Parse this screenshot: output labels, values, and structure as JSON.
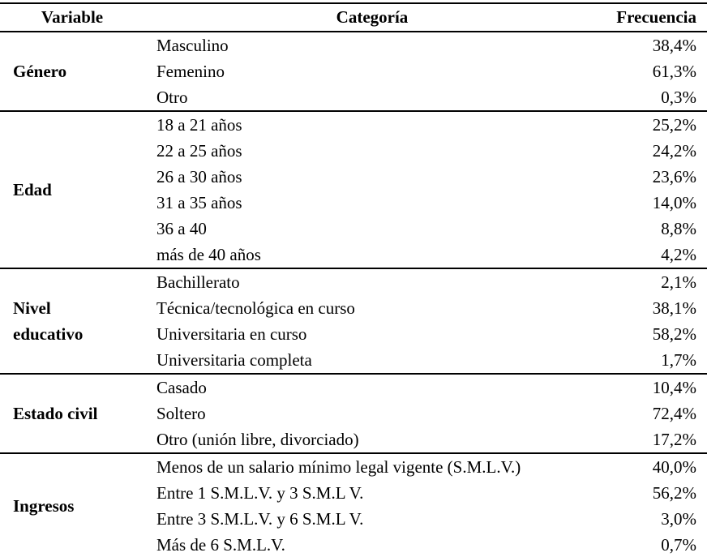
{
  "table": {
    "headers": {
      "variable": "Variable",
      "categoria": "Categoría",
      "frecuencia": "Frecuencia"
    },
    "groups": [
      {
        "variable": "Género",
        "rows": [
          {
            "categoria": "Masculino",
            "frecuencia": "38,4%"
          },
          {
            "categoria": "Femenino",
            "frecuencia": "61,3%"
          },
          {
            "categoria": "Otro",
            "frecuencia": "0,3%"
          }
        ]
      },
      {
        "variable": "Edad",
        "rows": [
          {
            "categoria": "18 a 21 años",
            "frecuencia": "25,2%"
          },
          {
            "categoria": "22 a 25 años",
            "frecuencia": "24,2%"
          },
          {
            "categoria": "26 a 30 años",
            "frecuencia": "23,6%"
          },
          {
            "categoria": "31 a 35 años",
            "frecuencia": "14,0%"
          },
          {
            "categoria": "36 a 40",
            "frecuencia": "8,8%"
          },
          {
            "categoria": "más de 40 años",
            "frecuencia": "4,2%"
          }
        ]
      },
      {
        "variable": "Nivel educativo",
        "rows": [
          {
            "categoria": "Bachillerato",
            "frecuencia": "2,1%"
          },
          {
            "categoria": "Técnica/tecnológica en curso",
            "frecuencia": "38,1%"
          },
          {
            "categoria": "Universitaria en curso",
            "frecuencia": "58,2%"
          },
          {
            "categoria": "Universitaria completa",
            "frecuencia": "1,7%"
          }
        ]
      },
      {
        "variable": "Estado civil",
        "rows": [
          {
            "categoria": "Casado",
            "frecuencia": "10,4%"
          },
          {
            "categoria": "Soltero",
            "frecuencia": "72,4%"
          },
          {
            "categoria": "Otro (unión libre, divorciado)",
            "frecuencia": "17,2%"
          }
        ]
      },
      {
        "variable": "Ingresos",
        "rows": [
          {
            "categoria": "Menos de un salario mínimo legal vigente (S.M.L.V.)",
            "frecuencia": "40,0%"
          },
          {
            "categoria": "Entre 1 S.M.L.V. y 3 S.M.L V.",
            "frecuencia": "56,2%"
          },
          {
            "categoria": "Entre 3 S.M.L.V. y 6 S.M.L V.",
            "frecuencia": "3,0%"
          },
          {
            "categoria": "Más de 6 S.M.L.V.",
            "frecuencia": "0,7%"
          }
        ]
      }
    ],
    "colors": {
      "text": "#000000",
      "background": "#ffffff",
      "border": "#000000"
    }
  }
}
